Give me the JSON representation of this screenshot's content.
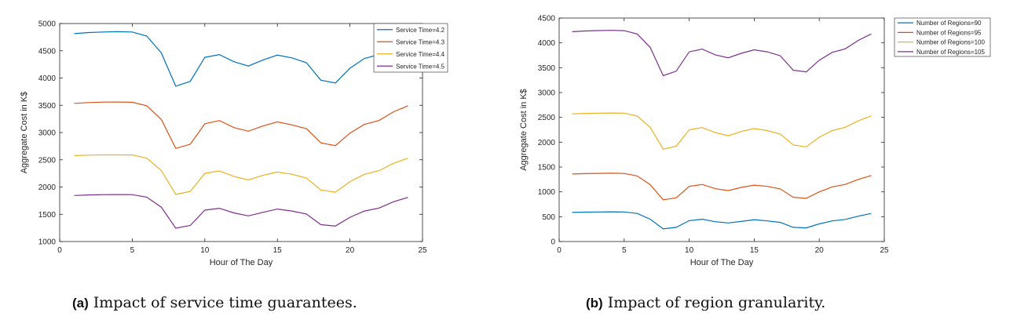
{
  "captions": [
    {
      "tag": "(a)",
      "text": "Impact of service time guarantees."
    },
    {
      "tag": "(b)",
      "text": "Impact of region granularity."
    }
  ],
  "chart_data": [
    {
      "type": "line",
      "xlabel": "Hour of The Day",
      "ylabel": "Aggregate Cost in K$",
      "xlim": [
        0,
        25
      ],
      "ylim": [
        1000,
        5000
      ],
      "xticks": [
        0,
        5,
        10,
        15,
        20,
        25
      ],
      "yticks": [
        1000,
        1500,
        2000,
        2500,
        3000,
        3500,
        4000,
        4500,
        5000
      ],
      "grid": false,
      "legend_position": "outside-right",
      "x": [
        1,
        2,
        3,
        4,
        5,
        6,
        7,
        8,
        9,
        10,
        11,
        12,
        13,
        14,
        15,
        16,
        17,
        18,
        19,
        20,
        21,
        22,
        23,
        24
      ],
      "series": [
        {
          "name": "Service Time=4.2",
          "color": "#0072BD",
          "values": [
            4815,
            4835,
            4845,
            4850,
            4845,
            4770,
            4460,
            3850,
            3940,
            4380,
            4430,
            4300,
            4220,
            4330,
            4420,
            4370,
            4280,
            3960,
            3910,
            4180,
            4360,
            4430,
            4620,
            4760
          ]
        },
        {
          "name": "Service Time=4.3",
          "color": "#D95319",
          "values": [
            3535,
            3550,
            3558,
            3560,
            3555,
            3490,
            3240,
            2710,
            2785,
            3160,
            3220,
            3090,
            3025,
            3120,
            3195,
            3140,
            3070,
            2810,
            2760,
            2990,
            3150,
            3220,
            3380,
            3490
          ]
        },
        {
          "name": "Service Time=4.4",
          "color": "#EDB120",
          "values": [
            2575,
            2585,
            2590,
            2590,
            2588,
            2530,
            2300,
            1865,
            1920,
            2250,
            2295,
            2195,
            2130,
            2215,
            2275,
            2235,
            2165,
            1945,
            1905,
            2100,
            2235,
            2300,
            2435,
            2530
          ]
        },
        {
          "name": "Service Time=4.5",
          "color": "#7E2F8E",
          "values": [
            1845,
            1855,
            1860,
            1862,
            1860,
            1815,
            1630,
            1245,
            1295,
            1575,
            1610,
            1525,
            1470,
            1535,
            1595,
            1560,
            1505,
            1310,
            1285,
            1445,
            1560,
            1615,
            1730,
            1810
          ]
        }
      ]
    },
    {
      "type": "line",
      "xlabel": "Hour of The Day",
      "ylabel": "Aggregate Cost in K$",
      "xlim": [
        0,
        25
      ],
      "ylim": [
        0,
        4500
      ],
      "xticks": [
        0,
        5,
        10,
        15,
        20,
        25
      ],
      "yticks": [
        0,
        500,
        1000,
        1500,
        2000,
        2500,
        3000,
        3500,
        4000,
        4500
      ],
      "grid": false,
      "legend_position": "outside-right",
      "x": [
        1,
        2,
        3,
        4,
        5,
        6,
        7,
        8,
        9,
        10,
        11,
        12,
        13,
        14,
        15,
        16,
        17,
        18,
        19,
        20,
        21,
        22,
        23,
        24
      ],
      "series": [
        {
          "name": "Number of Regions=90",
          "color": "#0072BD",
          "values": [
            585,
            592,
            596,
            598,
            595,
            565,
            450,
            255,
            285,
            420,
            450,
            400,
            375,
            405,
            440,
            415,
            385,
            285,
            275,
            355,
            415,
            445,
            510,
            565
          ]
        },
        {
          "name": "Number of Regions=95",
          "color": "#D95319",
          "values": [
            1360,
            1368,
            1372,
            1375,
            1370,
            1320,
            1145,
            840,
            880,
            1110,
            1150,
            1065,
            1025,
            1090,
            1135,
            1110,
            1060,
            890,
            870,
            1000,
            1100,
            1150,
            1250,
            1330
          ]
        },
        {
          "name": "Number of Regions=100",
          "color": "#EDB120",
          "values": [
            2570,
            2580,
            2585,
            2588,
            2585,
            2525,
            2300,
            1860,
            1920,
            2250,
            2295,
            2195,
            2130,
            2215,
            2275,
            2235,
            2165,
            1945,
            1905,
            2100,
            2235,
            2300,
            2430,
            2530
          ]
        },
        {
          "name": "Number of Regions=105",
          "color": "#7E2F8E",
          "values": [
            4225,
            4240,
            4248,
            4252,
            4245,
            4180,
            3910,
            3340,
            3430,
            3820,
            3875,
            3760,
            3700,
            3790,
            3860,
            3820,
            3740,
            3450,
            3415,
            3650,
            3810,
            3880,
            4050,
            4180
          ]
        }
      ]
    }
  ]
}
